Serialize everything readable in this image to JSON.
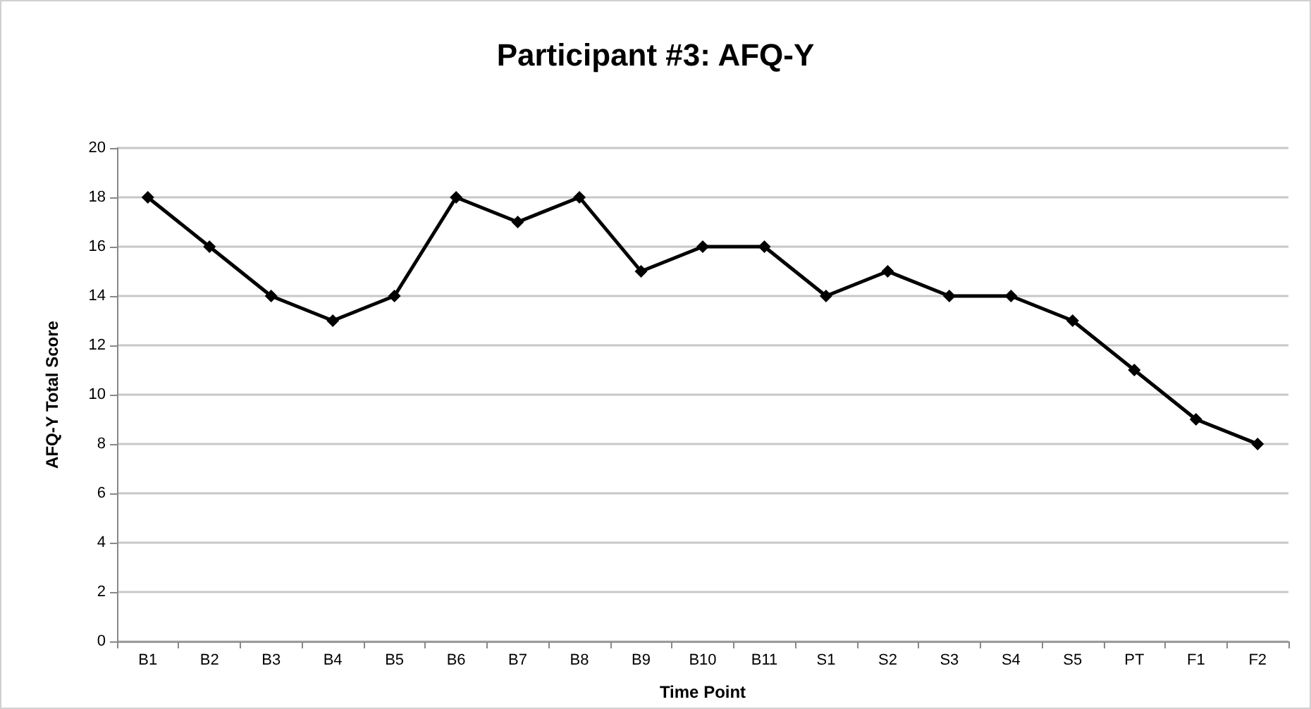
{
  "chart_data": {
    "type": "line",
    "title": "Participant #3: AFQ-Y",
    "xlabel": "Time Point",
    "ylabel": "AFQ-Y Total Score",
    "categories": [
      "B1",
      "B2",
      "B3",
      "B4",
      "B5",
      "B6",
      "B7",
      "B8",
      "B9",
      "B10",
      "B11",
      "S1",
      "S2",
      "S3",
      "S4",
      "S5",
      "PT",
      "F1",
      "F2"
    ],
    "series": [
      {
        "color": "#000000",
        "values": [
          18,
          16,
          14,
          13,
          14,
          18,
          17,
          18,
          15,
          16,
          16,
          14,
          15,
          14,
          14,
          13,
          11,
          9,
          8
        ]
      }
    ],
    "ylim": [
      0,
      20
    ],
    "yticks": [
      0,
      2,
      4,
      6,
      8,
      10,
      12,
      14,
      16,
      18,
      20
    ],
    "grid": "y",
    "marker": "diamond",
    "line_style": "solid"
  }
}
